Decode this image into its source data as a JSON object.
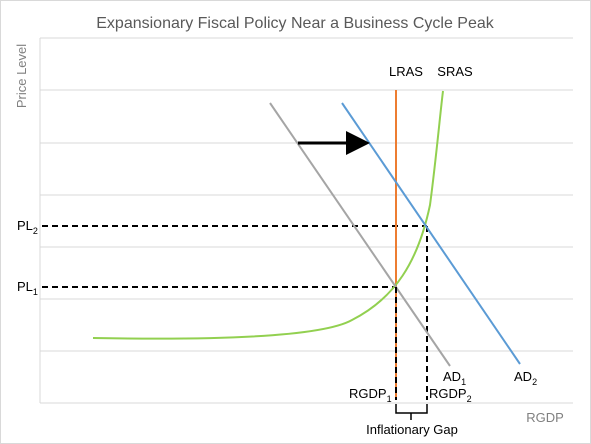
{
  "title": "Expansionary Fiscal Policy Near a Business Cycle Peak",
  "axes": {
    "y_label": "Price Level",
    "x_label": "RGDP"
  },
  "curves": {
    "lras": {
      "label": "LRAS",
      "color": "#ed7d31"
    },
    "sras": {
      "label": "SRAS",
      "color": "#92d050"
    },
    "ad1": {
      "label": "AD",
      "subscript": "1",
      "color": "#a5a5a5"
    },
    "ad2": {
      "label": "AD",
      "subscript": "2",
      "color": "#5b9bd5"
    }
  },
  "price_levels": {
    "pl1": {
      "label": "PL",
      "subscript": "1"
    },
    "pl2": {
      "label": "PL",
      "subscript": "2"
    }
  },
  "outputs": {
    "rgdp1": {
      "label": "RGDP",
      "subscript": "1"
    },
    "rgdp2": {
      "label": "RGDP",
      "subscript": "2"
    }
  },
  "gap_label": "Inflationary Gap",
  "shift_arrow": {
    "from": "AD1",
    "to": "AD2"
  },
  "gridlines": true
}
